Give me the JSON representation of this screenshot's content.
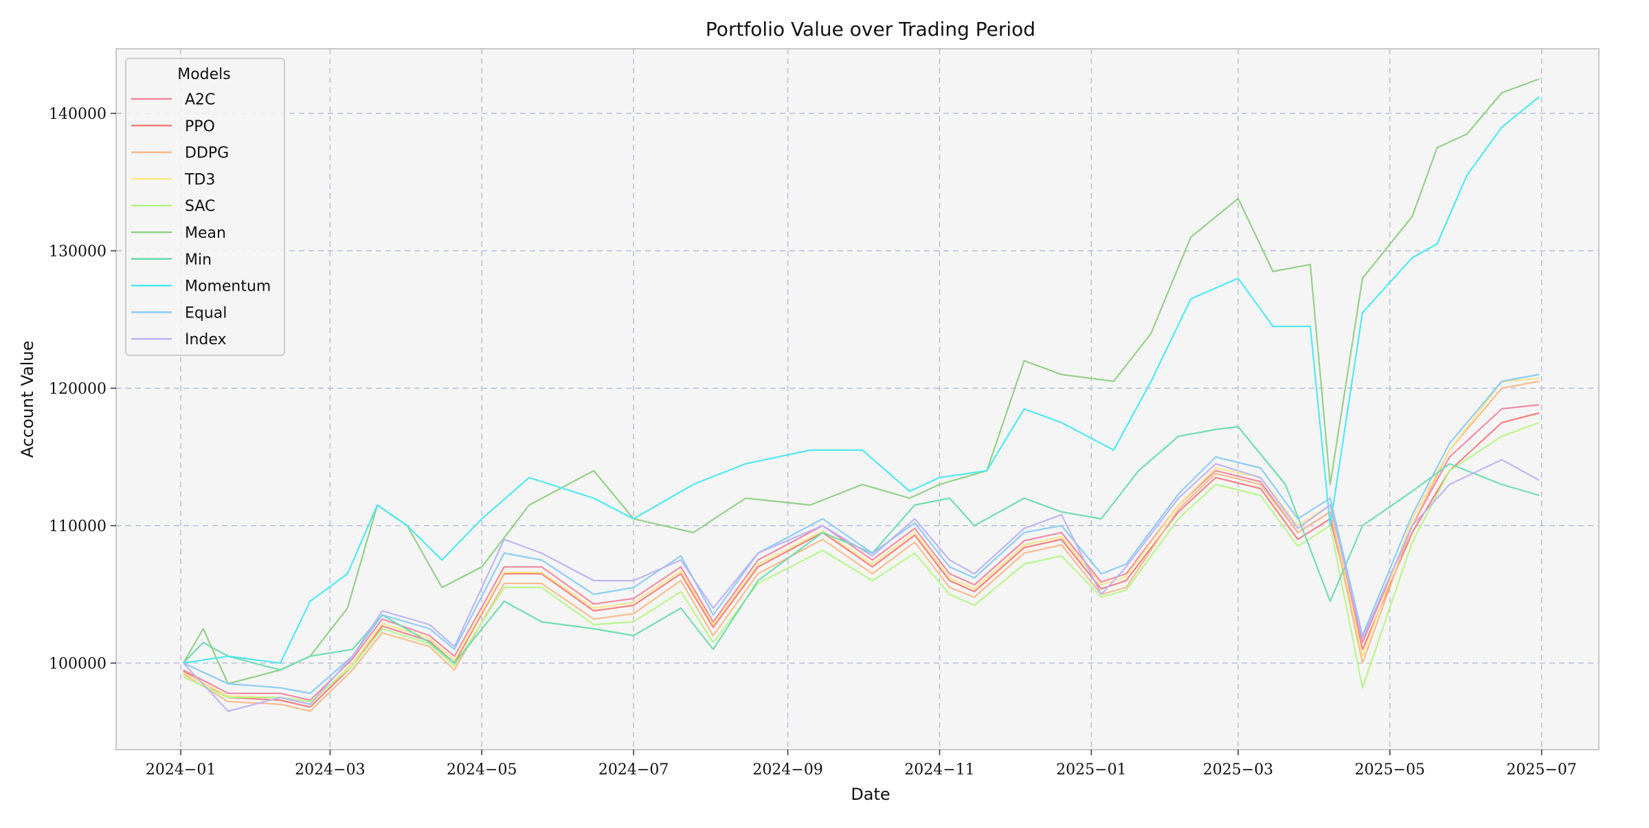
{
  "chart_data": {
    "type": "line",
    "title": "Portfolio Value over Trading Period",
    "xlabel": "Date",
    "ylabel": "Account Value",
    "x_ticks": [
      "2024-01-01",
      "2024-03-01",
      "2024-05-01",
      "2024-07-01",
      "2024-09-01",
      "2024-11-01",
      "2025-01-01",
      "2025-03-01",
      "2025-05-01",
      "2025-07-01"
    ],
    "x_tick_labels": [
      "2024−01",
      "2024−03",
      "2024−05",
      "2024−07",
      "2024−09",
      "2024−11",
      "2025−01",
      "2025−03",
      "2025−05",
      "2025−07"
    ],
    "y_ticks": [
      100000,
      110000,
      120000,
      130000,
      140000
    ],
    "y_tick_labels": [
      "100000",
      "110000",
      "120000",
      "130000",
      "140000"
    ],
    "xlim": [
      "2023-12-06",
      "2025-07-24"
    ],
    "ylim": [
      93700,
      144700
    ],
    "grid": true,
    "legend": {
      "title": "Models",
      "placement": "top-left"
    },
    "series": [
      {
        "name": "A2C",
        "color": "#f0879f",
        "x": [
          "2024-01-02",
          "2024-01-20",
          "2024-02-10",
          "2024-02-22",
          "2024-03-10",
          "2024-03-22",
          "2024-04-10",
          "2024-04-20",
          "2024-05-10",
          "2024-05-25",
          "2024-06-15",
          "2024-07-01",
          "2024-07-20",
          "2024-08-02",
          "2024-08-20",
          "2024-09-15",
          "2024-10-05",
          "2024-10-22",
          "2024-11-05",
          "2024-11-15",
          "2024-12-05",
          "2024-12-20",
          "2025-01-05",
          "2025-01-15",
          "2025-02-05",
          "2025-02-20",
          "2025-03-10",
          "2025-03-25",
          "2025-04-07",
          "2025-04-20",
          "2025-05-10",
          "2025-05-25",
          "2025-06-15",
          "2025-06-30"
        ],
        "y": [
          99500,
          97800,
          97800,
          97300,
          100300,
          103200,
          102000,
          100500,
          107000,
          107000,
          104300,
          104700,
          107000,
          103000,
          107500,
          110000,
          107500,
          109800,
          106500,
          105700,
          108900,
          109500,
          105900,
          106500,
          111500,
          114000,
          113200,
          109500,
          111000,
          101500,
          110000,
          115000,
          118500,
          118800
        ]
      },
      {
        "name": "PPO",
        "color": "#f47b7b",
        "x": [
          "2024-01-02",
          "2024-01-20",
          "2024-02-10",
          "2024-02-22",
          "2024-03-10",
          "2024-03-22",
          "2024-04-10",
          "2024-04-20",
          "2024-05-10",
          "2024-05-25",
          "2024-06-15",
          "2024-07-01",
          "2024-07-20",
          "2024-08-02",
          "2024-08-20",
          "2024-09-15",
          "2024-10-05",
          "2024-10-22",
          "2024-11-05",
          "2024-11-15",
          "2024-12-05",
          "2024-12-20",
          "2025-01-05",
          "2025-01-15",
          "2025-02-05",
          "2025-02-20",
          "2025-03-10",
          "2025-03-25",
          "2025-04-07",
          "2025-04-20",
          "2025-05-10",
          "2025-05-25",
          "2025-06-15",
          "2025-06-30"
        ],
        "y": [
          99400,
          97500,
          97300,
          96800,
          99800,
          102700,
          101600,
          100000,
          106500,
          106500,
          103800,
          104200,
          106500,
          102600,
          107000,
          109500,
          107000,
          109300,
          106000,
          105200,
          108400,
          109000,
          105400,
          106000,
          111000,
          113500,
          112700,
          109000,
          110500,
          101000,
          109500,
          114000,
          117500,
          118200
        ]
      },
      {
        "name": "DDPG",
        "color": "#f9b98a",
        "x": [
          "2024-01-02",
          "2024-01-20",
          "2024-02-10",
          "2024-02-22",
          "2024-03-10",
          "2024-03-22",
          "2024-04-10",
          "2024-04-20",
          "2024-05-10",
          "2024-05-25",
          "2024-06-15",
          "2024-07-01",
          "2024-07-20",
          "2024-08-02",
          "2024-08-20",
          "2024-09-15",
          "2024-10-05",
          "2024-10-22",
          "2024-11-05",
          "2024-11-15",
          "2024-12-05",
          "2024-12-20",
          "2025-01-05",
          "2025-01-15",
          "2025-02-05",
          "2025-02-20",
          "2025-03-10",
          "2025-03-25",
          "2025-04-07",
          "2025-04-20",
          "2025-05-10",
          "2025-05-25",
          "2025-06-15",
          "2025-06-30"
        ],
        "y": [
          99200,
          97200,
          97000,
          96500,
          99500,
          102200,
          101200,
          99500,
          105800,
          105800,
          103200,
          103600,
          106000,
          102000,
          106500,
          109000,
          106500,
          108800,
          105500,
          104800,
          108000,
          108600,
          105000,
          105500,
          111200,
          113800,
          113000,
          109500,
          111000,
          100000,
          110000,
          115500,
          120000,
          120500
        ]
      },
      {
        "name": "TD3",
        "color": "#fde58a",
        "x": [
          "2024-01-02",
          "2024-01-20",
          "2024-02-10",
          "2024-02-22",
          "2024-03-10",
          "2024-03-22",
          "2024-04-10",
          "2024-04-20",
          "2024-05-10",
          "2024-05-25",
          "2024-06-15",
          "2024-07-01",
          "2024-07-20",
          "2024-08-02",
          "2024-08-20",
          "2024-09-15",
          "2024-10-05",
          "2024-10-22",
          "2024-11-05",
          "2024-11-15",
          "2024-12-05",
          "2024-12-20",
          "2025-01-05",
          "2025-01-15",
          "2025-02-05",
          "2025-02-20",
          "2025-03-10",
          "2025-03-25",
          "2025-04-07",
          "2025-04-20",
          "2025-05-10",
          "2025-05-25",
          "2025-06-15",
          "2025-06-30"
        ],
        "y": [
          99300,
          97600,
          97500,
          97000,
          100000,
          102900,
          101800,
          100200,
          106600,
          106600,
          104000,
          104400,
          106700,
          102800,
          107200,
          109600,
          107200,
          109500,
          106200,
          105400,
          108600,
          109200,
          105700,
          106300,
          111500,
          114200,
          113500,
          110000,
          111500,
          100500,
          110500,
          115500,
          120500,
          120700
        ]
      },
      {
        "name": "SAC",
        "color": "#b5f58a",
        "x": [
          "2024-01-02",
          "2024-01-20",
          "2024-02-10",
          "2024-02-22",
          "2024-03-10",
          "2024-03-22",
          "2024-04-10",
          "2024-04-20",
          "2024-05-10",
          "2024-05-25",
          "2024-06-15",
          "2024-07-01",
          "2024-07-20",
          "2024-08-02",
          "2024-08-20",
          "2024-09-15",
          "2024-10-05",
          "2024-10-22",
          "2024-11-05",
          "2024-11-15",
          "2024-12-05",
          "2024-12-20",
          "2025-01-05",
          "2025-01-15",
          "2025-02-05",
          "2025-02-20",
          "2025-03-10",
          "2025-03-25",
          "2025-04-07",
          "2025-04-20",
          "2025-05-10",
          "2025-05-25",
          "2025-06-15",
          "2025-06-30"
        ],
        "y": [
          99000,
          97500,
          97500,
          97200,
          99800,
          102500,
          101400,
          99800,
          105500,
          105500,
          102800,
          103000,
          105200,
          101500,
          105800,
          108200,
          106000,
          108000,
          105000,
          104200,
          107200,
          107800,
          104800,
          105300,
          110500,
          113000,
          112200,
          108500,
          110000,
          98200,
          108800,
          114000,
          116500,
          117500
        ]
      },
      {
        "name": "Mean",
        "color": "#8fce84",
        "x": [
          "2024-01-02",
          "2024-01-10",
          "2024-01-20",
          "2024-02-10",
          "2024-02-22",
          "2024-03-08",
          "2024-03-20",
          "2024-04-01",
          "2024-04-15",
          "2024-05-01",
          "2024-05-20",
          "2024-06-15",
          "2024-07-01",
          "2024-07-25",
          "2024-08-15",
          "2024-09-10",
          "2024-10-01",
          "2024-10-20",
          "2024-11-01",
          "2024-11-20",
          "2024-12-05",
          "2024-12-20",
          "2025-01-10",
          "2025-01-25",
          "2025-02-10",
          "2025-03-01",
          "2025-03-15",
          "2025-03-30",
          "2025-04-07",
          "2025-04-20",
          "2025-05-10",
          "2025-05-20",
          "2025-06-01",
          "2025-06-15",
          "2025-06-30"
        ],
        "y": [
          100000,
          102500,
          98500,
          99500,
          100500,
          104000,
          111500,
          110000,
          105500,
          107000,
          111500,
          114000,
          110500,
          109500,
          112000,
          111500,
          113000,
          112000,
          113000,
          114000,
          122000,
          121000,
          120500,
          124000,
          131000,
          133800,
          128500,
          129000,
          113000,
          128000,
          132500,
          137500,
          138500,
          141500,
          142500
        ]
      },
      {
        "name": "Min",
        "color": "#6ddaae",
        "x": [
          "2024-01-02",
          "2024-01-10",
          "2024-01-20",
          "2024-02-10",
          "2024-02-22",
          "2024-03-10",
          "2024-03-22",
          "2024-04-10",
          "2024-04-20",
          "2024-05-10",
          "2024-05-25",
          "2024-06-15",
          "2024-07-01",
          "2024-07-20",
          "2024-08-02",
          "2024-08-20",
          "2024-09-15",
          "2024-10-05",
          "2024-10-22",
          "2024-11-05",
          "2024-11-15",
          "2024-12-05",
          "2024-12-20",
          "2025-01-05",
          "2025-01-20",
          "2025-02-05",
          "2025-02-20",
          "2025-03-01",
          "2025-03-20",
          "2025-04-07",
          "2025-04-20",
          "2025-05-10",
          "2025-05-25",
          "2025-06-15",
          "2025-06-30"
        ],
        "y": [
          100000,
          101500,
          100500,
          99500,
          100500,
          101000,
          103500,
          101500,
          100000,
          104500,
          103000,
          102500,
          102000,
          104000,
          101000,
          106000,
          109500,
          108000,
          111500,
          112000,
          110000,
          112000,
          111000,
          110500,
          114000,
          116500,
          117000,
          117200,
          113000,
          104500,
          110000,
          112500,
          114500,
          113000,
          112200
        ]
      },
      {
        "name": "Momentum",
        "color": "#49e7f0",
        "x": [
          "2024-01-02",
          "2024-01-20",
          "2024-02-10",
          "2024-02-22",
          "2024-03-08",
          "2024-03-20",
          "2024-04-01",
          "2024-04-15",
          "2024-05-01",
          "2024-05-20",
          "2024-06-15",
          "2024-07-01",
          "2024-07-25",
          "2024-08-15",
          "2024-09-10",
          "2024-10-01",
          "2024-10-20",
          "2024-11-01",
          "2024-11-20",
          "2024-12-05",
          "2024-12-20",
          "2025-01-10",
          "2025-01-25",
          "2025-02-10",
          "2025-03-01",
          "2025-03-15",
          "2025-03-30",
          "2025-04-07",
          "2025-04-20",
          "2025-05-10",
          "2025-05-20",
          "2025-06-01",
          "2025-06-15",
          "2025-06-30"
        ],
        "y": [
          100000,
          100500,
          100000,
          104500,
          106500,
          111500,
          110000,
          107500,
          110500,
          113500,
          112000,
          110500,
          113000,
          114500,
          115500,
          115500,
          112500,
          113500,
          114000,
          118500,
          117500,
          115500,
          120500,
          126500,
          128000,
          124500,
          124500,
          110000,
          125500,
          129500,
          130500,
          135500,
          139000,
          141200
        ]
      },
      {
        "name": "Equal",
        "color": "#89c9f4",
        "x": [
          "2024-01-02",
          "2024-01-20",
          "2024-02-10",
          "2024-02-22",
          "2024-03-10",
          "2024-03-22",
          "2024-04-10",
          "2024-04-20",
          "2024-05-10",
          "2024-05-25",
          "2024-06-15",
          "2024-07-01",
          "2024-07-20",
          "2024-08-02",
          "2024-08-20",
          "2024-09-15",
          "2024-10-05",
          "2024-10-22",
          "2024-11-05",
          "2024-11-15",
          "2024-12-05",
          "2024-12-20",
          "2025-01-05",
          "2025-01-15",
          "2025-02-05",
          "2025-02-20",
          "2025-03-10",
          "2025-03-25",
          "2025-04-07",
          "2025-04-20",
          "2025-05-10",
          "2025-05-25",
          "2025-06-15",
          "2025-06-30"
        ],
        "y": [
          100000,
          98500,
          98200,
          97800,
          100500,
          103500,
          102500,
          101000,
          108000,
          107500,
          105000,
          105500,
          107800,
          103500,
          108000,
          110500,
          108000,
          110200,
          107000,
          106200,
          109500,
          110000,
          106500,
          107200,
          112300,
          115000,
          114200,
          110500,
          112000,
          102000,
          110800,
          116000,
          120500,
          121000
        ]
      },
      {
        "name": "Index",
        "color": "#bbb2f5",
        "x": [
          "2024-01-02",
          "2024-01-20",
          "2024-02-10",
          "2024-02-22",
          "2024-03-10",
          "2024-03-22",
          "2024-04-10",
          "2024-04-20",
          "2024-05-10",
          "2024-05-25",
          "2024-06-15",
          "2024-07-01",
          "2024-07-20",
          "2024-08-02",
          "2024-08-20",
          "2024-09-15",
          "2024-10-05",
          "2024-10-22",
          "2024-11-05",
          "2024-11-15",
          "2024-12-05",
          "2024-12-20",
          "2025-01-05",
          "2025-01-15",
          "2025-02-05",
          "2025-02-20",
          "2025-03-10",
          "2025-03-25",
          "2025-04-07",
          "2025-04-20",
          "2025-05-10",
          "2025-05-25",
          "2025-06-15",
          "2025-06-30"
        ],
        "y": [
          100000,
          96500,
          97500,
          97000,
          100500,
          103800,
          102800,
          101200,
          109000,
          108000,
          106000,
          106000,
          107500,
          104000,
          108000,
          110000,
          107800,
          110500,
          107500,
          106500,
          109800,
          110800,
          105000,
          107000,
          112000,
          114500,
          113500,
          109800,
          111500,
          101800,
          110000,
          113000,
          114800,
          113300
        ]
      }
    ]
  }
}
